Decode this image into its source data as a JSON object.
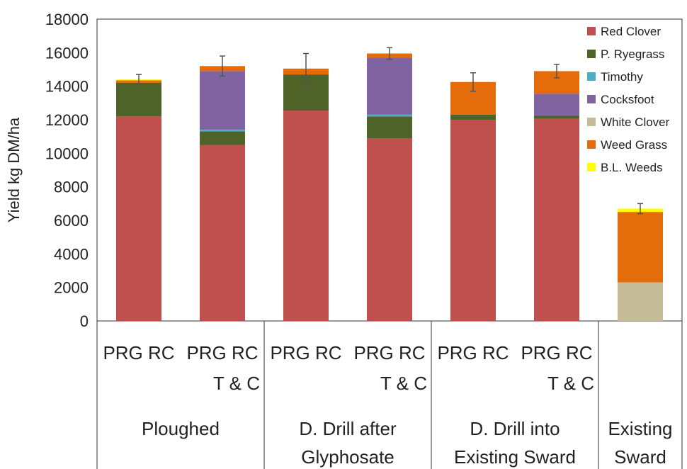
{
  "chart_data": {
    "type": "bar",
    "stacked": true,
    "ylabel": "Yield   kg DM/ha",
    "ylim": [
      0,
      18000
    ],
    "yticks": [
      "0",
      "2000",
      "4000",
      "6000",
      "8000",
      "10000",
      "12000",
      "14000",
      "16000",
      "18000"
    ],
    "grid": false,
    "legend_position": "top-right",
    "categories": [
      {
        "line1": "PRG RC",
        "line2": ""
      },
      {
        "line1": "PRG RC",
        "line2": "T & C"
      },
      {
        "line1": "PRG RC",
        "line2": ""
      },
      {
        "line1": "PRG RC",
        "line2": "T & C"
      },
      {
        "line1": "PRG RC",
        "line2": ""
      },
      {
        "line1": "PRG RC",
        "line2": "T & C"
      },
      {
        "line1": "",
        "line2": ""
      }
    ],
    "groups": [
      {
        "label_lines": [
          "Ploughed"
        ],
        "span": [
          0,
          1
        ]
      },
      {
        "label_lines": [
          "D. Drill after",
          "Glyphosate"
        ],
        "span": [
          2,
          3
        ]
      },
      {
        "label_lines": [
          "D. Drill into",
          "Existing Sward"
        ],
        "span": [
          4,
          5
        ]
      },
      {
        "label_lines": [
          "Existing",
          "Sward"
        ],
        "span": [
          6,
          6
        ]
      }
    ],
    "series": [
      {
        "name": "Red Clover",
        "color": "#c0504d",
        "values": [
          12200,
          10500,
          12550,
          10900,
          12000,
          12050,
          0
        ]
      },
      {
        "name": "P. Ryegrass",
        "color": "#4f6228",
        "values": [
          2000,
          800,
          2150,
          1300,
          300,
          200,
          0
        ]
      },
      {
        "name": "Timothy",
        "color": "#4bacc6",
        "values": [
          0,
          100,
          0,
          100,
          0,
          0,
          0
        ]
      },
      {
        "name": "Cocksfoot",
        "color": "#8064a2",
        "values": [
          0,
          3500,
          0,
          3400,
          0,
          1300,
          0
        ]
      },
      {
        "name": "White Clover",
        "color": "#c4bd97",
        "values": [
          0,
          0,
          0,
          0,
          0,
          0,
          2300
        ]
      },
      {
        "name": "Weed Grass",
        "color": "#e46c0a",
        "values": [
          150,
          300,
          350,
          250,
          1950,
          1350,
          4200
        ]
      },
      {
        "name": "B.L. Weeds",
        "color": "#ffff00",
        "values": [
          50,
          0,
          0,
          0,
          0,
          0,
          200
        ]
      }
    ],
    "error_bars": [
      300,
      600,
      900,
      350,
      550,
      400,
      300
    ]
  }
}
